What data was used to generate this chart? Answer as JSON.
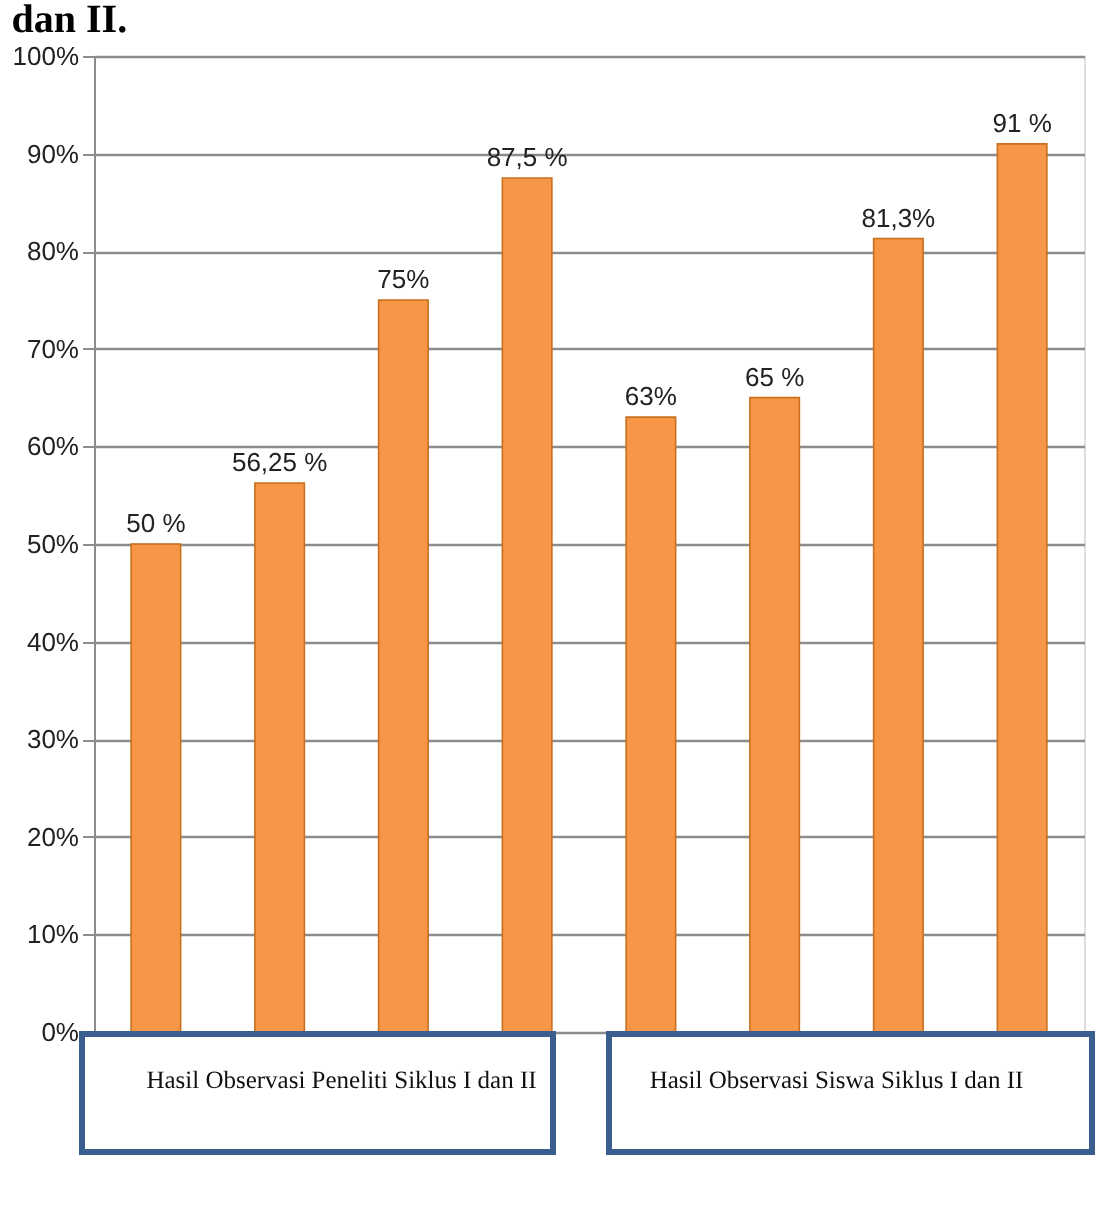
{
  "chart_data": {
    "type": "bar",
    "title": "dan II.",
    "categories": [
      null,
      null,
      null,
      null,
      null,
      null,
      null,
      null
    ],
    "values": [
      50,
      56.25,
      75,
      87.5,
      63,
      65,
      81.3,
      91
    ],
    "value_labels": [
      "50 %",
      "56,25 %",
      "75%",
      "87,5 %",
      "63%",
      "65 %",
      "81,3%",
      "91 %"
    ],
    "color": "#f79646",
    "ylim": [
      0,
      100
    ],
    "yticks": [
      {
        "value": 0,
        "label": "0%"
      },
      {
        "value": 10,
        "label": "10%"
      },
      {
        "value": 20,
        "label": "20%"
      },
      {
        "value": 30,
        "label": "30%"
      },
      {
        "value": 40,
        "label": "40%"
      },
      {
        "value": 50,
        "label": "50%"
      },
      {
        "value": 60,
        "label": "60%"
      },
      {
        "value": 70,
        "label": "70%"
      },
      {
        "value": 80,
        "label": "80%"
      },
      {
        "value": 90,
        "label": "90%"
      },
      {
        "value": 100,
        "label": "100%"
      }
    ],
    "grid": "y",
    "tick_labels": "y",
    "annotations": [
      "Hasil Observasi Peneliti Siklus I dan II",
      "Hasil Observasi Siswa Siklus I dan II"
    ]
  }
}
